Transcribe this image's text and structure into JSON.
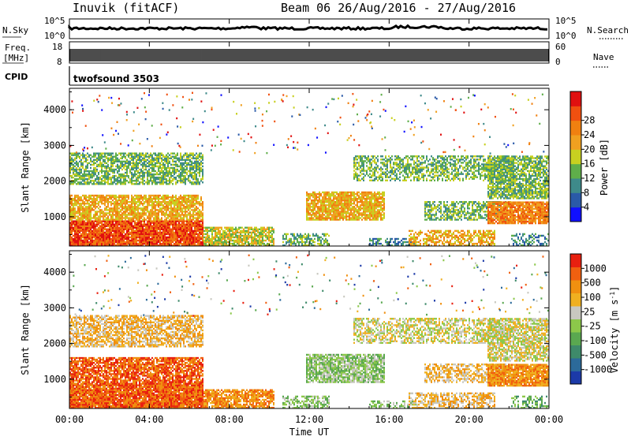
{
  "header": {
    "station": "Inuvik (fitACF)",
    "beam_dates": "Beam 06 26/Aug/2016 - 27/Aug/2016"
  },
  "noise_panel": {
    "left_label": "N.Sky",
    "left_ticks": [
      "10^5",
      "10^0"
    ],
    "right_ticks": [
      "10^5",
      "10^0"
    ],
    "right_label": "N.Search"
  },
  "freq_panel": {
    "left_label_1": "Freq.",
    "left_label_2": "[MHz]",
    "left_ticks": [
      "18",
      "8"
    ],
    "right_ticks": [
      "60",
      "0"
    ],
    "right_label": "Nave"
  },
  "cpid_panel": {
    "label": "CPID",
    "program": "twofsound 3503"
  },
  "chart_data": [
    {
      "type": "heatmap",
      "quantity": "Power",
      "ylabel": "Slant Range [km]",
      "yticks": [
        "1000",
        "2000",
        "3000",
        "4000"
      ],
      "ylim": [
        180,
        4600
      ],
      "colorbar": {
        "label": "Power [dB]",
        "ticks": [
          "4",
          "8",
          "12",
          "16",
          "20",
          "24",
          "28"
        ],
        "colors": [
          "#1010ff",
          "#2a5aa8",
          "#3e8a8a",
          "#5fae4a",
          "#c8d020",
          "#f0a020",
          "#f08010",
          "#f05010",
          "#e01010"
        ]
      }
    },
    {
      "type": "heatmap",
      "quantity": "Velocity",
      "ylabel": "Slant Range [km]",
      "yticks": [
        "1000",
        "2000",
        "3000",
        "4000"
      ],
      "ylim": [
        180,
        4600
      ],
      "colorbar": {
        "label": "Velocity [m s^-1]",
        "ticks": [
          "1000",
          "500",
          "100",
          "25",
          "-25",
          "-100",
          "-500",
          "-1000"
        ],
        "colors": [
          "#1c3aa8",
          "#2c6a9a",
          "#3e8a6a",
          "#5aa850",
          "#8cc84a",
          "#c8c8c0",
          "#f0b020",
          "#f09010",
          "#f06010",
          "#e82010"
        ]
      }
    }
  ],
  "time_axis": {
    "ticks": [
      "00:00",
      "04:00",
      "08:00",
      "12:00",
      "16:00",
      "20:00",
      "00:00"
    ],
    "label": "Time UT"
  }
}
